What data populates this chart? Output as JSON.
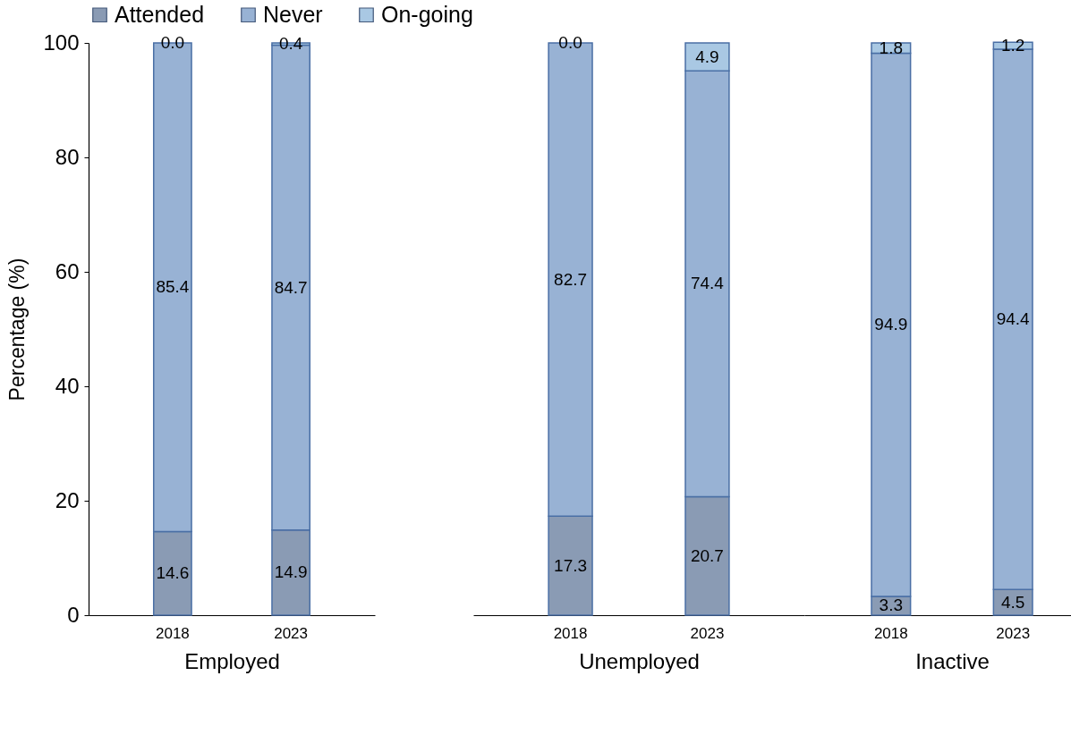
{
  "chart_data": [
    {
      "type": "bar",
      "stacked": true,
      "categories": [
        "2018",
        "2023"
      ],
      "xlabel": "Employed",
      "ylabel": "Percentage (%)",
      "ylim": [
        0,
        100
      ],
      "yticks": [
        0,
        20,
        40,
        60,
        80,
        100
      ],
      "legend": "top",
      "grid": false,
      "series": [
        {
          "name": "Attended",
          "color": "#8a9bb4",
          "values": [
            14.6,
            14.9
          ],
          "value_labels": [
            "14.6",
            "14.9"
          ]
        },
        {
          "name": "Never",
          "color": "#98b2d4",
          "values": [
            85.4,
            84.7
          ],
          "value_labels": [
            "85.4",
            "84.7"
          ]
        },
        {
          "name": "On-going",
          "color": "#a9c8e3",
          "values": [
            0.0,
            0.4
          ],
          "value_labels": [
            "0.0",
            "0.4"
          ]
        }
      ]
    },
    {
      "type": "bar",
      "stacked": true,
      "categories": [
        "2018",
        "2023"
      ],
      "xlabel": "Unemployed",
      "ylim": [
        0,
        100
      ],
      "tick_labels": "x",
      "grid": false,
      "series": [
        {
          "color": "#8a9bb4",
          "values": [
            17.3,
            20.7
          ],
          "value_labels": [
            "17.3",
            "20.7"
          ]
        },
        {
          "color": "#98b2d4",
          "values": [
            82.7,
            74.4
          ],
          "value_labels": [
            "82.7",
            "74.4"
          ]
        },
        {
          "color": "#a9c8e3",
          "values": [
            0.0,
            4.9
          ],
          "value_labels": [
            "0.0",
            "4.9"
          ]
        }
      ]
    },
    {
      "type": "bar",
      "stacked": true,
      "categories": [
        "2018",
        "2023"
      ],
      "xlabel": "Inactive",
      "ylim": [
        0,
        100
      ],
      "tick_labels": "x",
      "grid": false,
      "series": [
        {
          "color": "#8a9bb4",
          "values": [
            3.3,
            4.5
          ],
          "value_labels": [
            "3.3",
            "4.5"
          ]
        },
        {
          "color": "#98b2d4",
          "values": [
            94.9,
            94.4
          ],
          "value_labels": [
            "94.9",
            "94.4"
          ]
        },
        {
          "color": "#a9c8e3",
          "values": [
            1.8,
            1.2
          ],
          "value_labels": [
            "1.8",
            "1.2"
          ]
        }
      ]
    }
  ]
}
